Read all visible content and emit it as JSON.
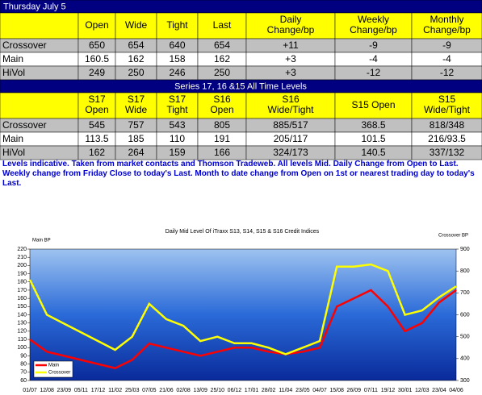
{
  "table1": {
    "title": "Thursday July 5",
    "columns": [
      [
        "Open"
      ],
      [
        "Wide"
      ],
      [
        "Tight"
      ],
      [
        "Last"
      ],
      [
        "Daily",
        "Change/bp"
      ],
      [
        "Weekly",
        "Change/bp"
      ],
      [
        "Monthly",
        "Change/bp"
      ]
    ],
    "rows": [
      [
        "Crossover",
        "650",
        "654",
        "640",
        "654",
        "+11",
        "-9",
        "-9"
      ],
      [
        "Main",
        "160.5",
        "162",
        "158",
        "162",
        "+3",
        "-4",
        "-4"
      ],
      [
        "HiVol",
        "249",
        "250",
        "246",
        "250",
        "+3",
        "-12",
        "-12"
      ]
    ]
  },
  "table2": {
    "title": "Series 17, 16 &15 All Time Levels",
    "columns": [
      [
        "S17",
        "Open"
      ],
      [
        "S17",
        "Wide"
      ],
      [
        "S17",
        "Tight"
      ],
      [
        "S16",
        "Open"
      ],
      [
        "S16",
        "Wide/Tight"
      ],
      [
        "S15 Open"
      ],
      [
        "S15",
        "Wide/Tight"
      ]
    ],
    "rows": [
      [
        "Crossover",
        "545",
        "757",
        "543",
        "805",
        "885/517",
        "368.5",
        "818/348"
      ],
      [
        "Main",
        "113.5",
        "185",
        "110",
        "191",
        "205/117",
        "101.5",
        "216/93.5"
      ],
      [
        "HiVol",
        "162",
        "264",
        "159",
        "166",
        "324/173",
        "140.5",
        "337/132"
      ]
    ]
  },
  "note": "Levels indicative. Taken from market contacts and Thomson Tradeweb. All levels Mid. Daily Change from Open to Last. Weekly change from Friday Close to today's Last. Month to date change from Open on 1st or nearest trading day to today's Last.",
  "chart_data": {
    "type": "line",
    "title": "Daily Mid Level Of iTraxx S13, S14, S15 & S16 Credit Indices",
    "y_label": "Main BP",
    "y2_label": "Crossover BP",
    "categories": [
      "01/07",
      "12/08",
      "23/09",
      "05/11",
      "17/12",
      "11/02",
      "25/03",
      "07/05",
      "21/06",
      "02/08",
      "13/09",
      "25/10",
      "06/12",
      "17/01",
      "28/02",
      "11/04",
      "23/05",
      "04/07",
      "15/08",
      "26/09",
      "07/11",
      "19/12",
      "30/01",
      "12/03",
      "23/04",
      "04/06"
    ],
    "series": [
      {
        "name": "Main",
        "color": "#ff0000",
        "axis": "y",
        "values": [
          110,
          95,
          90,
          85,
          80,
          75,
          85,
          105,
          100,
          95,
          90,
          95,
          100,
          100,
          95,
          92,
          95,
          100,
          150,
          160,
          170,
          150,
          120,
          130,
          155,
          170
        ]
      },
      {
        "name": "Crossover",
        "color": "#ffff00",
        "axis": "y2",
        "values": [
          760,
          600,
          560,
          520,
          480,
          440,
          500,
          650,
          580,
          550,
          480,
          500,
          470,
          470,
          450,
          420,
          450,
          480,
          820,
          820,
          830,
          800,
          600,
          620,
          680,
          730
        ]
      }
    ],
    "ylim": [
      60,
      220
    ],
    "yticks": [
      60,
      70,
      80,
      90,
      100,
      110,
      120,
      130,
      140,
      150,
      160,
      170,
      180,
      190,
      200,
      210,
      220
    ],
    "y2lim": [
      300,
      900
    ],
    "y2ticks": [
      300,
      400,
      500,
      600,
      700,
      800,
      900
    ],
    "legend": "lower-left"
  }
}
